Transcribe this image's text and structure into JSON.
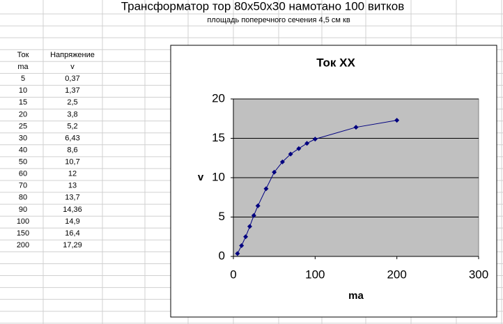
{
  "header": {
    "title": "Трансформатор тор 80x50x30 намотано 100 витков",
    "subtitle": "площадь поперечного сечения 4,5 см кв"
  },
  "table": {
    "header": [
      [
        "Ток",
        "Напряжение"
      ],
      [
        "ma",
        "v"
      ]
    ],
    "rows": [
      [
        "5",
        "0,37"
      ],
      [
        "10",
        "1,37"
      ],
      [
        "15",
        "2,5"
      ],
      [
        "20",
        "3,8"
      ],
      [
        "25",
        "5,2"
      ],
      [
        "30",
        "6,43"
      ],
      [
        "40",
        "8,6"
      ],
      [
        "50",
        "10,7"
      ],
      [
        "60",
        "12"
      ],
      [
        "70",
        "13"
      ],
      [
        "80",
        "13,7"
      ],
      [
        "90",
        "14,36"
      ],
      [
        "100",
        "14,9"
      ],
      [
        "150",
        "16,4"
      ],
      [
        "200",
        "17,29"
      ]
    ]
  },
  "chart_data": {
    "type": "line",
    "title": "Ток XX",
    "x_label": "ma",
    "y_label": "v",
    "x": [
      5,
      10,
      15,
      20,
      25,
      30,
      40,
      50,
      60,
      70,
      80,
      90,
      100,
      150,
      200
    ],
    "values": [
      0.37,
      1.37,
      2.5,
      3.8,
      5.2,
      6.43,
      8.6,
      10.7,
      12,
      13,
      13.7,
      14.36,
      14.9,
      16.4,
      17.29
    ],
    "color": "#000080",
    "marker": "diamond",
    "xlim": [
      0,
      300
    ],
    "xticks": [
      0,
      100,
      200,
      300
    ],
    "ylim": [
      0,
      20
    ],
    "yticks": [
      0,
      5,
      10,
      15,
      20
    ],
    "grid": true
  }
}
